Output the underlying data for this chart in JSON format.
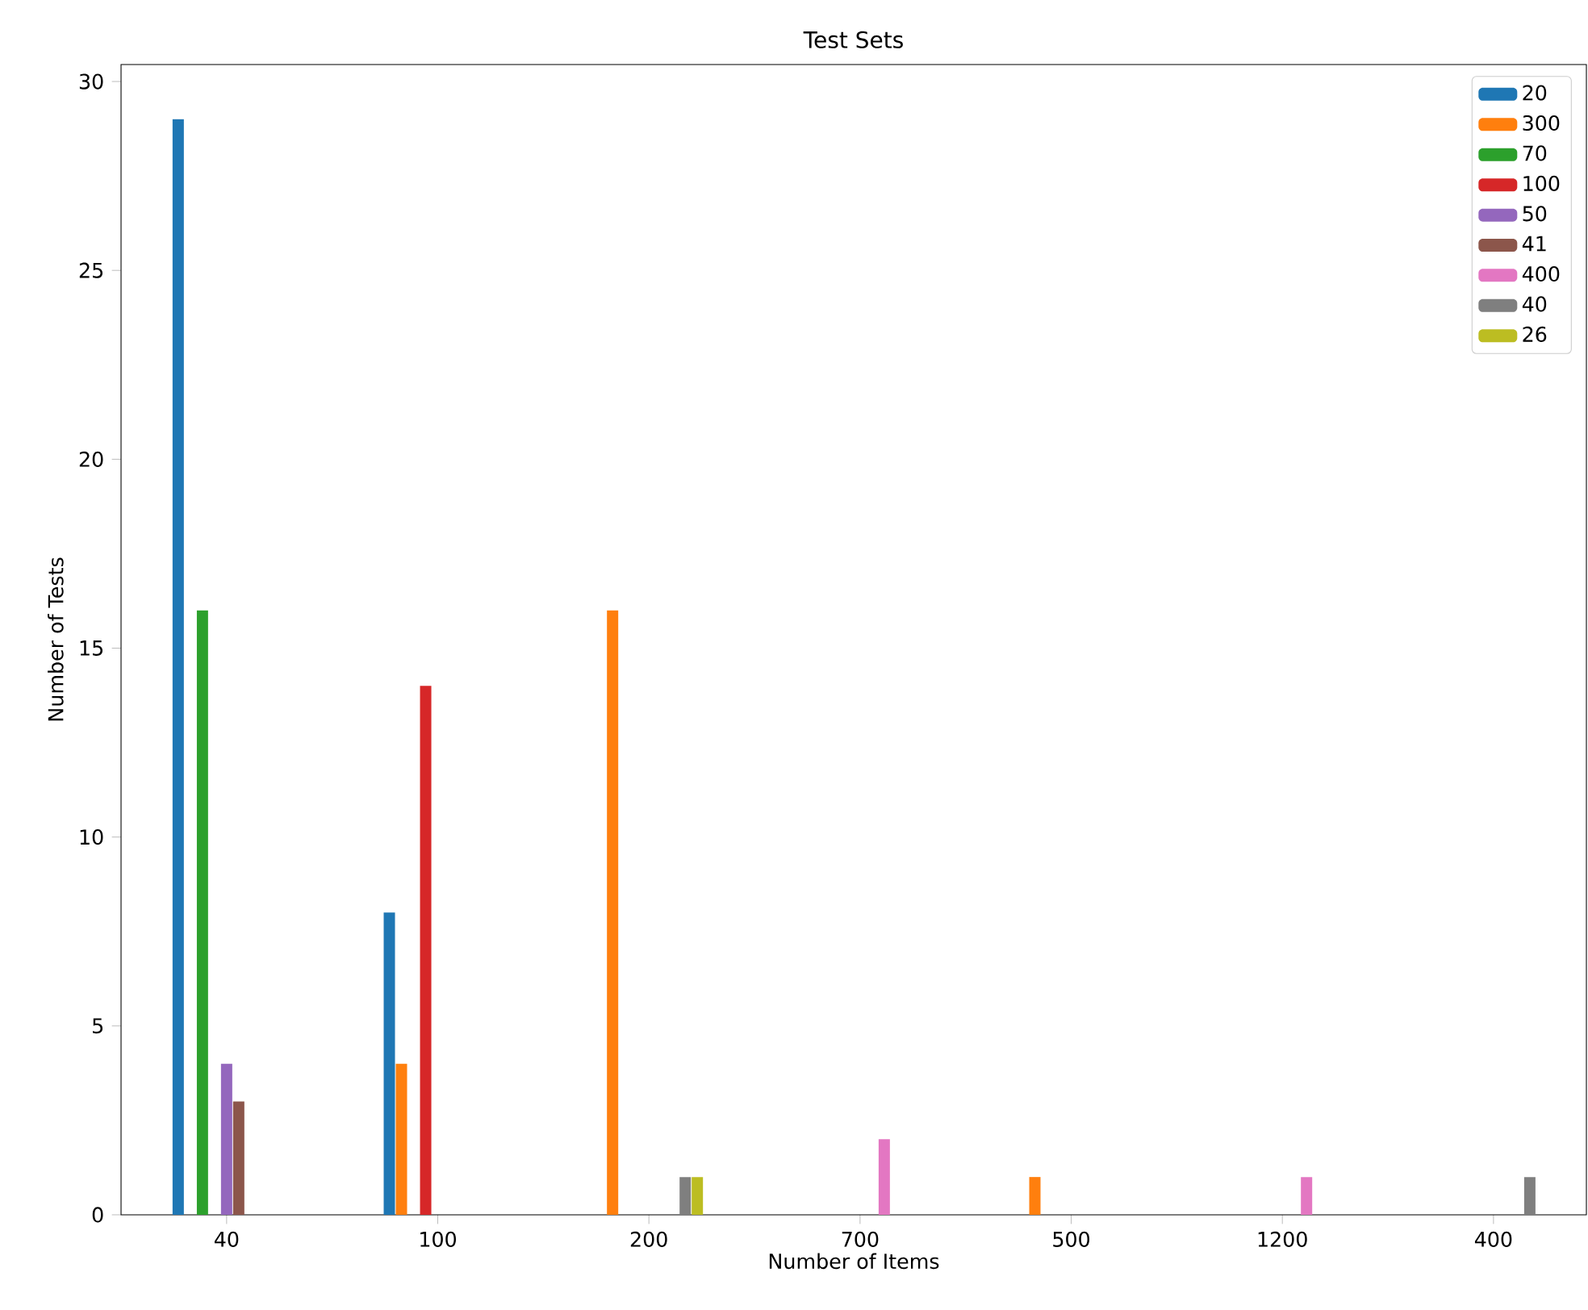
{
  "chart_data": {
    "type": "bar",
    "title": "Test Sets",
    "xlabel": "Number of Items",
    "ylabel": "Number of Tests",
    "categories": [
      "40",
      "100",
      "200",
      "700",
      "500",
      "1200",
      "400"
    ],
    "series": [
      {
        "name": "20",
        "color": "#1f77b4",
        "values": [
          29,
          8,
          0,
          0,
          0,
          0,
          0
        ]
      },
      {
        "name": "300",
        "color": "#ff7f0e",
        "values": [
          0,
          4,
          16,
          0,
          1,
          0,
          0
        ]
      },
      {
        "name": "70",
        "color": "#2ca02c",
        "values": [
          16,
          0,
          0,
          0,
          0,
          0,
          0
        ]
      },
      {
        "name": "100",
        "color": "#d62728",
        "values": [
          0,
          14,
          0,
          0,
          0,
          0,
          0
        ]
      },
      {
        "name": "50",
        "color": "#9467bd",
        "values": [
          4,
          0,
          0,
          0,
          0,
          0,
          0
        ]
      },
      {
        "name": "41",
        "color": "#8c564b",
        "values": [
          3,
          0,
          0,
          0,
          0,
          0,
          0
        ]
      },
      {
        "name": "400",
        "color": "#e377c2",
        "values": [
          0,
          0,
          0,
          2,
          0,
          1,
          0
        ]
      },
      {
        "name": "40",
        "color": "#7f7f7f",
        "values": [
          0,
          0,
          1,
          0,
          0,
          0,
          1
        ]
      },
      {
        "name": "26",
        "color": "#bcbd22",
        "values": [
          0,
          0,
          1,
          0,
          0,
          0,
          0
        ]
      }
    ],
    "ylim": [
      0,
      30.45
    ],
    "yticks": [
      0,
      5,
      10,
      15,
      20,
      25,
      30
    ],
    "grid": false,
    "legend": "top right"
  }
}
